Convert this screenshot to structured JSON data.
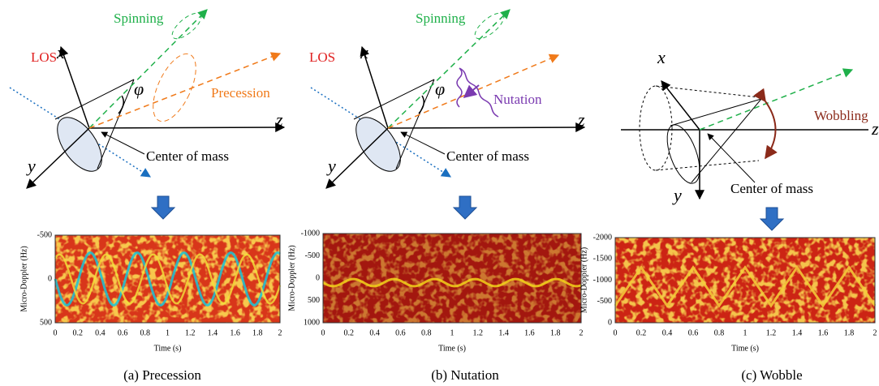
{
  "panels": [
    {
      "diagram": {
        "spinning": "Spinning",
        "los": "LOS",
        "x": "x",
        "y": "y",
        "z": "z",
        "angle": "φ",
        "motion": "Precession",
        "center": "Center of mass"
      },
      "spectrogram": {
        "ylabel": "Micro-Doppler (Hz)",
        "yticks": [
          -500,
          0,
          500
        ],
        "xticks": [
          0,
          0.2,
          0.4,
          0.6,
          0.8,
          1,
          1.2,
          1.4,
          1.6,
          1.8,
          2
        ],
        "xlabel": "Time (s)"
      },
      "caption": "(a) Precession"
    },
    {
      "diagram": {
        "spinning": "Spinning",
        "los": "LOS",
        "x": "x",
        "y": "y",
        "z": "z",
        "angle": "φ",
        "motion": "Nutation",
        "center": "Center of mass"
      },
      "spectrogram": {
        "ylabel": "Micro-Doppler (Hz)",
        "yticks": [
          -1000,
          -500,
          0,
          500,
          1000
        ],
        "xticks": [
          0,
          0.2,
          0.4,
          0.6,
          0.8,
          1,
          1.2,
          1.4,
          1.6,
          1.8,
          2
        ],
        "xlabel": "Time (s)"
      },
      "caption": "(b) Nutation"
    },
    {
      "diagram": {
        "x": "x",
        "y": "y",
        "z": "z",
        "motion": "Wobbling",
        "center": "Center of mass"
      },
      "spectrogram": {
        "ylabel": "Micro-Doppler (Hz)",
        "yticks": [
          -2000,
          -1500,
          -1000,
          -500,
          0
        ],
        "xticks": [
          0,
          0.2,
          0.4,
          0.6,
          0.8,
          1,
          1.2,
          1.4,
          1.6,
          1.8,
          2
        ],
        "xlabel": "Time (s)"
      },
      "caption": "(c) Wobble"
    }
  ]
}
